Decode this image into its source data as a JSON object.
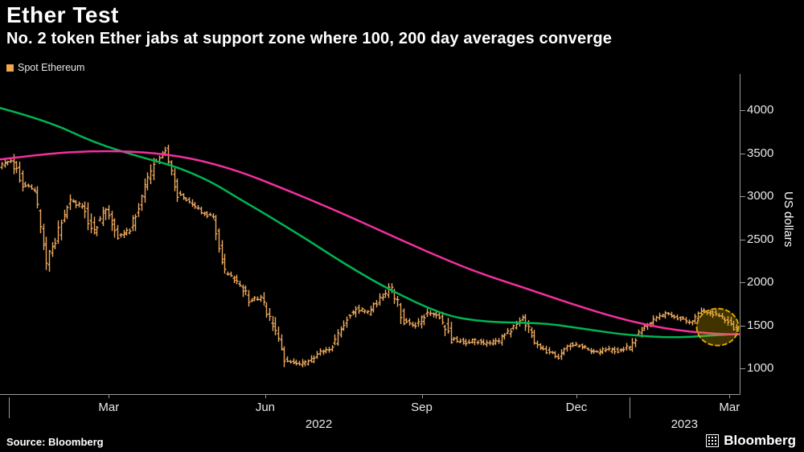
{
  "header": {
    "title": "Ether Test",
    "subtitle": "No. 2 token Ether jabs at support zone where 100, 200 day averages converge"
  },
  "legend": {
    "items": [
      {
        "label": "Spot Ethereum",
        "color": "#f3a64d",
        "shape": "square"
      }
    ]
  },
  "footer": {
    "source": "Source: Bloomberg",
    "brand": "Bloomberg",
    "brand_icon": "bloomberg-mark-icon"
  },
  "chart_data": {
    "type": "ohlc-bar+line",
    "title": "Ether Test",
    "xlabel": "",
    "ylabel": "US dollars",
    "y_axis_side": "right",
    "grid": false,
    "background": "#000000",
    "x_range": {
      "start": "2021-12-27",
      "end": "2023-03-07"
    },
    "ylim": [
      700,
      4350
    ],
    "y_ticks": [
      1000,
      1500,
      2000,
      2500,
      3000,
      3500,
      4000
    ],
    "x_ticks": [
      {
        "label": "Mar",
        "date": "2022-03-01"
      },
      {
        "label": "Jun",
        "date": "2022-06-01"
      },
      {
        "label": "Sep",
        "date": "2022-09-01"
      },
      {
        "label": "Dec",
        "date": "2022-12-01"
      },
      {
        "label": "Mar",
        "date": "2023-03-01"
      }
    ],
    "year_labels": [
      "2022",
      "2023"
    ],
    "axis_color": "#9b9b9b",
    "tick_text_color": "#e8e8e8",
    "series": [
      {
        "name": "Spot Ethereum",
        "type": "ohlc",
        "color": "#eda95f",
        "granularity": "weekly_close_usd",
        "points": [
          [
            "2021-12-27",
            3350
          ],
          [
            "2022-01-03",
            3420
          ],
          [
            "2022-01-10",
            3150
          ],
          [
            "2022-01-17",
            3050
          ],
          [
            "2022-01-24",
            2250
          ],
          [
            "2022-01-31",
            2600
          ],
          [
            "2022-02-07",
            2950
          ],
          [
            "2022-02-14",
            2880
          ],
          [
            "2022-02-21",
            2600
          ],
          [
            "2022-02-28",
            2900
          ],
          [
            "2022-03-07",
            2550
          ],
          [
            "2022-03-14",
            2600
          ],
          [
            "2022-03-21",
            2980
          ],
          [
            "2022-03-28",
            3400
          ],
          [
            "2022-04-04",
            3520
          ],
          [
            "2022-04-11",
            3020
          ],
          [
            "2022-04-18",
            2950
          ],
          [
            "2022-04-25",
            2820
          ],
          [
            "2022-05-02",
            2750
          ],
          [
            "2022-05-09",
            2100
          ],
          [
            "2022-05-16",
            2020
          ],
          [
            "2022-05-23",
            1800
          ],
          [
            "2022-05-30",
            1820
          ],
          [
            "2022-06-06",
            1500
          ],
          [
            "2022-06-13",
            1100
          ],
          [
            "2022-06-20",
            1050
          ],
          [
            "2022-06-27",
            1070
          ],
          [
            "2022-07-04",
            1180
          ],
          [
            "2022-07-11",
            1250
          ],
          [
            "2022-07-18",
            1550
          ],
          [
            "2022-07-25",
            1700
          ],
          [
            "2022-08-01",
            1650
          ],
          [
            "2022-08-08",
            1800
          ],
          [
            "2022-08-15",
            1950
          ],
          [
            "2022-08-22",
            1550
          ],
          [
            "2022-08-29",
            1500
          ],
          [
            "2022-09-05",
            1650
          ],
          [
            "2022-09-12",
            1600
          ],
          [
            "2022-09-19",
            1350
          ],
          [
            "2022-09-26",
            1300
          ],
          [
            "2022-10-03",
            1320
          ],
          [
            "2022-10-10",
            1290
          ],
          [
            "2022-10-17",
            1320
          ],
          [
            "2022-10-24",
            1450
          ],
          [
            "2022-10-31",
            1570
          ],
          [
            "2022-11-07",
            1300
          ],
          [
            "2022-11-14",
            1200
          ],
          [
            "2022-11-21",
            1130
          ],
          [
            "2022-11-28",
            1280
          ],
          [
            "2022-12-05",
            1260
          ],
          [
            "2022-12-12",
            1180
          ],
          [
            "2022-12-19",
            1220
          ],
          [
            "2022-12-26",
            1200
          ],
          [
            "2023-01-02",
            1260
          ],
          [
            "2023-01-09",
            1450
          ],
          [
            "2023-01-16",
            1570
          ],
          [
            "2023-01-23",
            1630
          ],
          [
            "2023-01-30",
            1590
          ],
          [
            "2023-02-06",
            1540
          ],
          [
            "2023-02-13",
            1680
          ],
          [
            "2023-02-20",
            1640
          ],
          [
            "2023-02-27",
            1570
          ],
          [
            "2023-03-06",
            1440
          ]
        ]
      },
      {
        "name": "100-day moving average",
        "type": "line",
        "color": "#00b552",
        "points": [
          [
            "2021-12-27",
            4030
          ],
          [
            "2022-01-24",
            3880
          ],
          [
            "2022-02-21",
            3620
          ],
          [
            "2022-03-21",
            3450
          ],
          [
            "2022-04-04",
            3380
          ],
          [
            "2022-04-18",
            3280
          ],
          [
            "2022-05-02",
            3150
          ],
          [
            "2022-05-16",
            2980
          ],
          [
            "2022-05-30",
            2820
          ],
          [
            "2022-06-13",
            2650
          ],
          [
            "2022-06-27",
            2480
          ],
          [
            "2022-07-11",
            2300
          ],
          [
            "2022-07-25",
            2130
          ],
          [
            "2022-08-08",
            1970
          ],
          [
            "2022-08-22",
            1830
          ],
          [
            "2022-09-05",
            1700
          ],
          [
            "2022-09-19",
            1600
          ],
          [
            "2022-10-03",
            1555
          ],
          [
            "2022-10-17",
            1535
          ],
          [
            "2022-10-31",
            1530
          ],
          [
            "2022-11-14",
            1520
          ],
          [
            "2022-11-28",
            1480
          ],
          [
            "2022-12-12",
            1440
          ],
          [
            "2022-12-26",
            1400
          ],
          [
            "2023-01-09",
            1375
          ],
          [
            "2023-01-23",
            1360
          ],
          [
            "2023-02-06",
            1365
          ],
          [
            "2023-02-20",
            1385
          ],
          [
            "2023-03-07",
            1400
          ]
        ]
      },
      {
        "name": "200-day moving average",
        "type": "line",
        "color": "#f42fa0",
        "points": [
          [
            "2021-12-27",
            3430
          ],
          [
            "2022-01-24",
            3500
          ],
          [
            "2022-02-21",
            3530
          ],
          [
            "2022-03-21",
            3520
          ],
          [
            "2022-04-18",
            3450
          ],
          [
            "2022-05-16",
            3300
          ],
          [
            "2022-06-13",
            3080
          ],
          [
            "2022-07-11",
            2850
          ],
          [
            "2022-08-08",
            2600
          ],
          [
            "2022-09-05",
            2350
          ],
          [
            "2022-10-03",
            2120
          ],
          [
            "2022-10-31",
            1940
          ],
          [
            "2022-11-28",
            1750
          ],
          [
            "2022-12-26",
            1580
          ],
          [
            "2023-01-23",
            1455
          ],
          [
            "2023-02-20",
            1400
          ],
          [
            "2023-03-07",
            1395
          ]
        ]
      }
    ],
    "annotations": [
      {
        "type": "circle-highlight",
        "date": "2023-02-22",
        "value": 1480,
        "radius_x_px": 26,
        "radius_y_px": 23,
        "fill": "rgba(216,170,0,0.30)",
        "stroke": "#d7a800",
        "dashed": true
      }
    ]
  }
}
